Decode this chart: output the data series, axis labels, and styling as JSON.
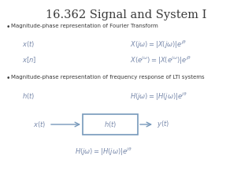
{
  "title": "16.362 Signal and System I",
  "title_fontsize": 10.5,
  "bg_color": "#ffffff",
  "bullet1": "Magnitude-phase representation of Fourier Transform",
  "bullet2": "Magnitude-phase representation of frequency response of LTI systems",
  "text_color": "#3a3a3a",
  "italic_color": "#7788aa",
  "box_color": "#7799bb",
  "bullet_fontsize": 5.0,
  "eq_fontsize": 6.0,
  "label_fontsize": 6.0
}
